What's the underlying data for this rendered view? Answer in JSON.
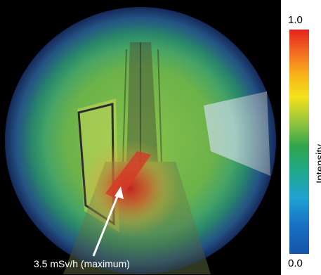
{
  "image": {
    "description_free_note": "",
    "annotation_label": "3.5 mSv/h (maximum)",
    "colorbar": {
      "max_label": "1.0",
      "min_label": "0.0",
      "axis_label": "Intensity",
      "colors": [
        "#e3231d",
        "#f36a23",
        "#f7b21b",
        "#f4e21b",
        "#8fc33f",
        "#2fa54a",
        "#1fa88f",
        "#1fa3d3",
        "#1870c4",
        "#1456a8"
      ]
    }
  }
}
